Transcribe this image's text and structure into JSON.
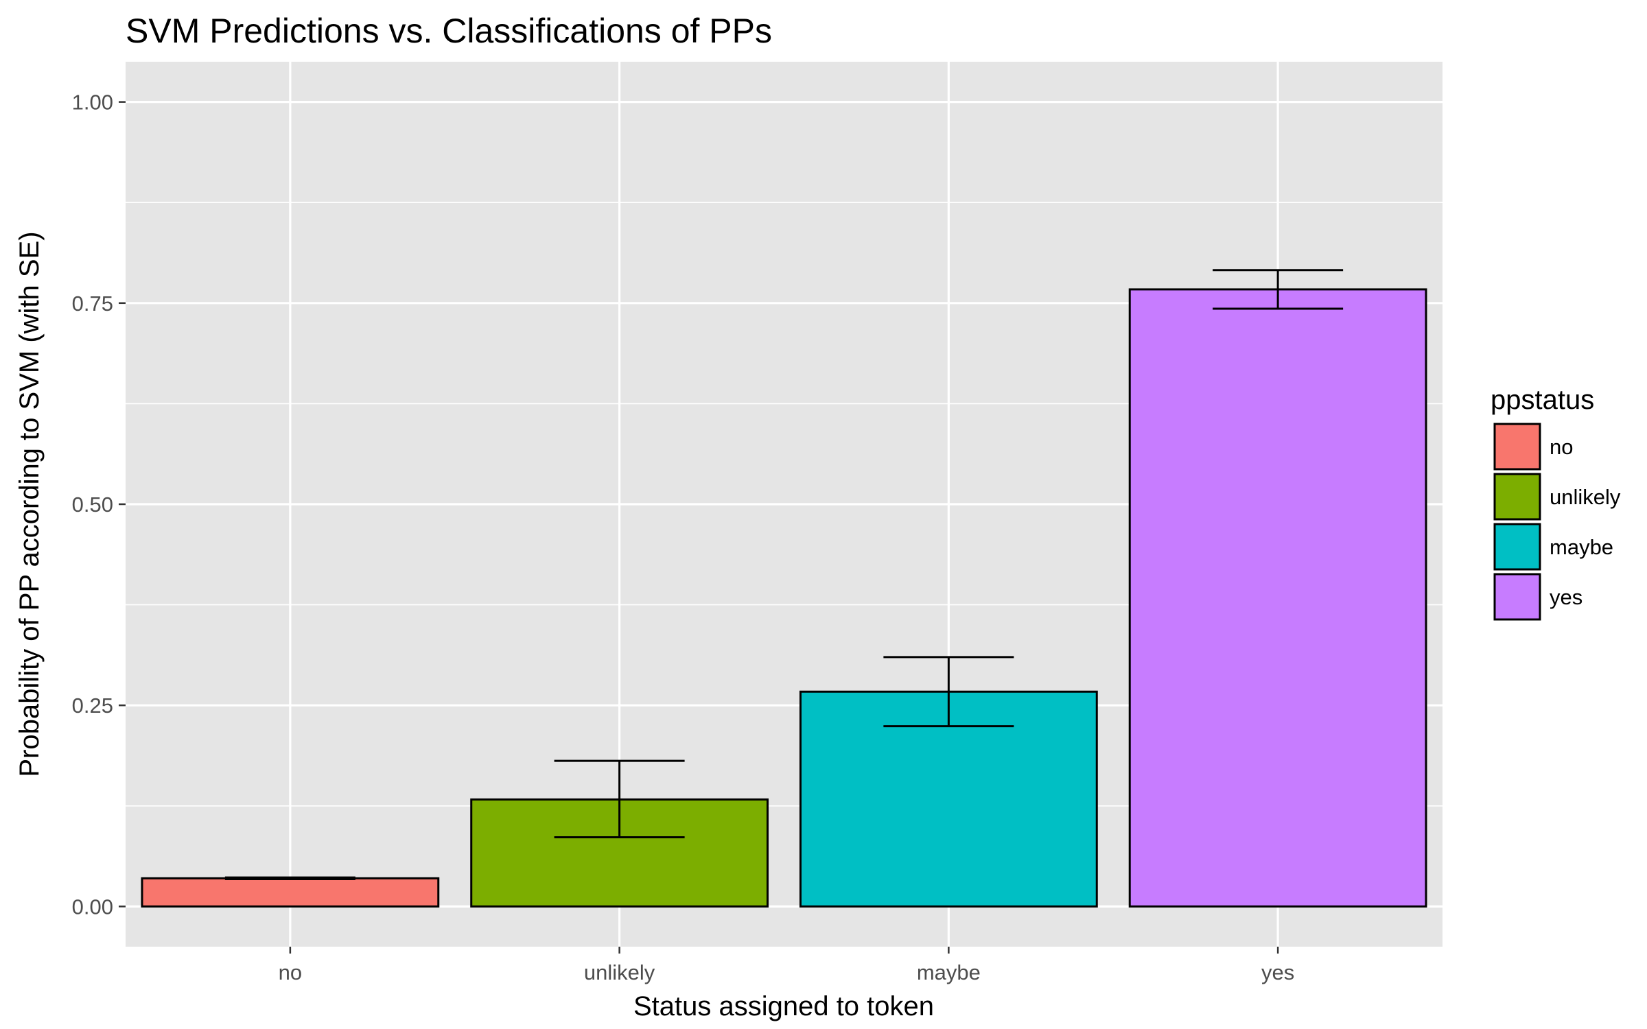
{
  "chart_data": {
    "type": "bar",
    "title": "SVM Predictions vs. Classifications of PPs",
    "xlabel": "Status assigned to token",
    "ylabel": "Probability of PP according to SVM (with SE)",
    "categories": [
      "no",
      "unlikely",
      "maybe",
      "yes"
    ],
    "values": [
      0.035,
      0.133,
      0.267,
      0.767
    ],
    "se_lower": [
      0.034,
      0.086,
      0.224,
      0.743
    ],
    "se_upper": [
      0.036,
      0.181,
      0.31,
      0.791
    ],
    "ylim": [
      -0.05,
      1.05
    ],
    "yticks": [
      0.0,
      0.25,
      0.5,
      0.75,
      1.0
    ],
    "ytick_labels": [
      "0.00",
      "0.25",
      "0.50",
      "0.75",
      "1.00"
    ],
    "colors": [
      "#F8766D",
      "#7CAE00",
      "#00BFC4",
      "#C77CFF"
    ],
    "legend": {
      "title": "ppstatus",
      "entries": [
        "no",
        "unlikely",
        "maybe",
        "yes"
      ],
      "placement": "right"
    },
    "grid": true,
    "panel_background": "#E5E5E5",
    "grid_color": "#FFFFFF"
  }
}
